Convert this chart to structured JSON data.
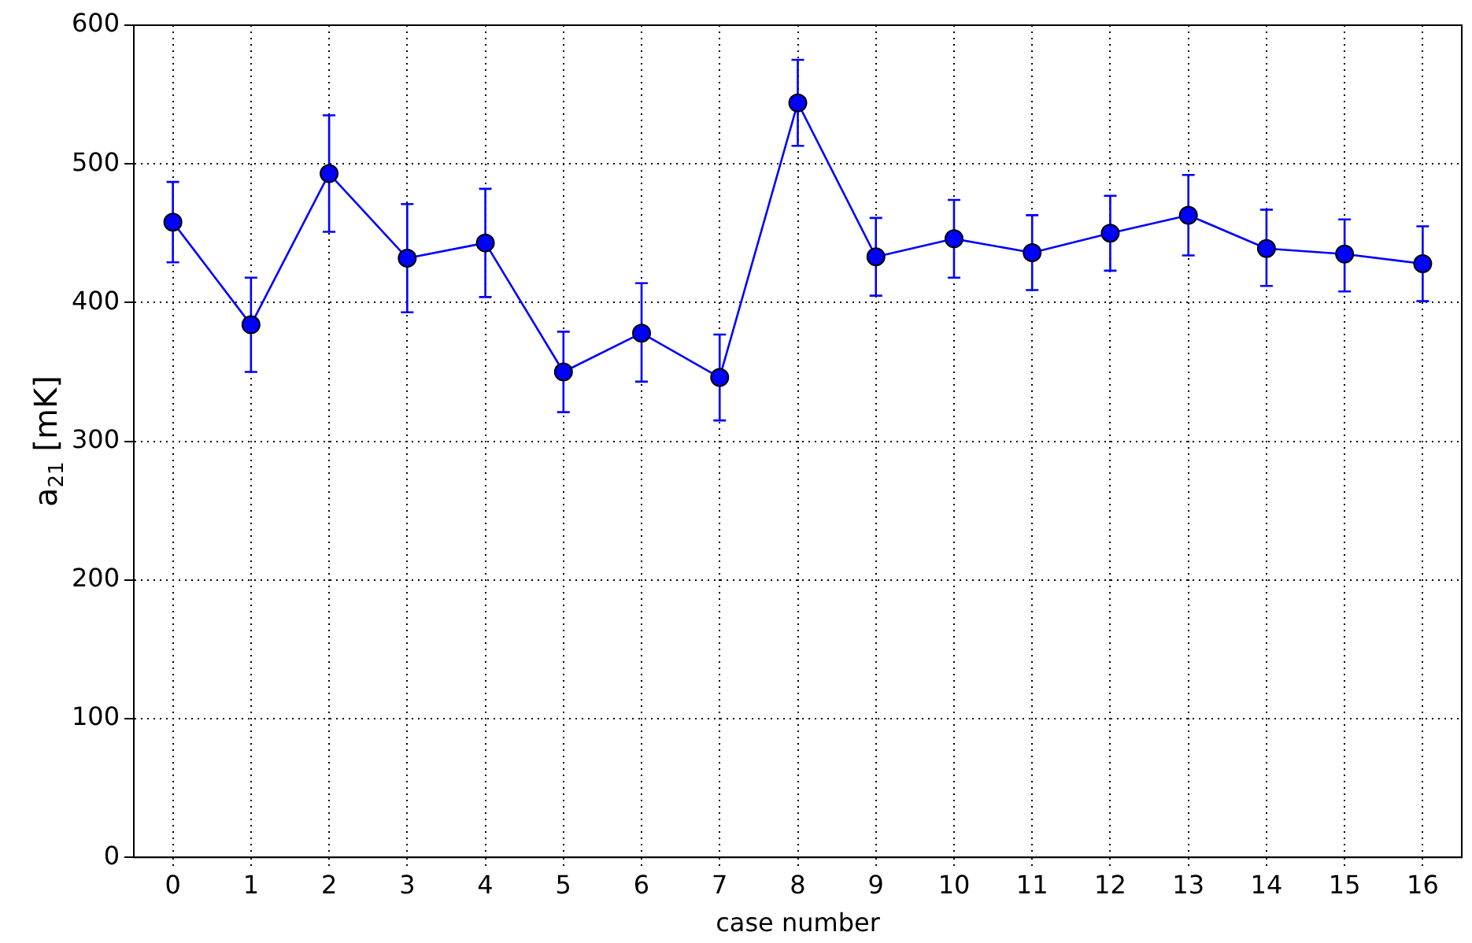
{
  "chart_data": {
    "type": "line",
    "xlabel": "case number",
    "ylabel": "a$_{21}$ [mK]",
    "x": [
      0,
      1,
      2,
      3,
      4,
      5,
      6,
      7,
      8,
      9,
      10,
      11,
      12,
      13,
      14,
      15,
      16
    ],
    "series": [
      {
        "color": "#0000ff",
        "values": [
          458,
          384,
          493,
          432,
          443,
          350,
          378,
          346,
          544,
          433,
          446,
          436,
          450,
          463,
          439,
          435,
          428
        ],
        "errors": [
          [
            429,
            487
          ],
          [
            350,
            418
          ],
          [
            451,
            535
          ],
          [
            393,
            471
          ],
          [
            404,
            482
          ],
          [
            321,
            379
          ],
          [
            343,
            414
          ],
          [
            315,
            377
          ],
          [
            513,
            575
          ],
          [
            405,
            461
          ],
          [
            418,
            474
          ],
          [
            409,
            463
          ],
          [
            423,
            477
          ],
          [
            434,
            492
          ],
          [
            412,
            467
          ],
          [
            408,
            460
          ],
          [
            401,
            455
          ]
        ]
      }
    ],
    "xlim": [
      -0.5,
      16.5
    ],
    "xticks": [
      0,
      1,
      2,
      3,
      4,
      5,
      6,
      7,
      8,
      9,
      10,
      11,
      12,
      13,
      14,
      15,
      16
    ],
    "ylim": [
      0,
      600
    ],
    "yticks": [
      0,
      100,
      200,
      300,
      400,
      500,
      600
    ],
    "grid": true,
    "legend": false,
    "marker": "circle",
    "line_style": "solid"
  }
}
